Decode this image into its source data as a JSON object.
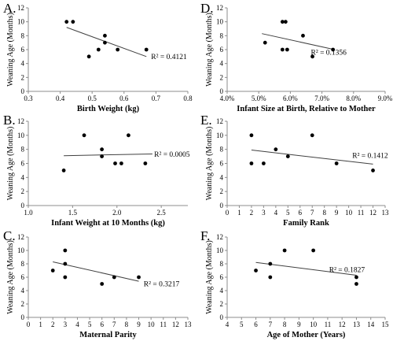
{
  "chart_data": [
    {
      "panel": "A.",
      "type": "scatter",
      "xlabel": "Birth Weight (kg)",
      "ylabel": "Weaning Age (Months)",
      "xlim": [
        0.3,
        0.8
      ],
      "ylim": [
        0,
        12
      ],
      "x_ticks": [
        0.3,
        0.4,
        0.5,
        0.6,
        0.7,
        0.8
      ],
      "x_tick_labels": [
        "0.3",
        "0.4",
        "0.5",
        "0.6",
        "0.7",
        "0.8"
      ],
      "y_ticks": [
        0,
        2,
        4,
        6,
        8,
        10,
        12
      ],
      "points": [
        [
          0.42,
          10
        ],
        [
          0.44,
          10
        ],
        [
          0.54,
          8
        ],
        [
          0.54,
          7
        ],
        [
          0.52,
          6
        ],
        [
          0.58,
          6
        ],
        [
          0.49,
          5
        ],
        [
          0.67,
          6
        ]
      ],
      "trendline": [
        [
          0.42,
          9.2
        ],
        [
          0.67,
          5.0
        ]
      ],
      "r2_label": "R² = 0.4121",
      "r2_pos": [
        0.685,
        5.0
      ]
    },
    {
      "panel": "D.",
      "type": "scatter",
      "xlabel": "Infant Size at Birth, Relative to Mother",
      "ylabel": "Weaning Age (Months)",
      "xlim": [
        4.0,
        9.0
      ],
      "ylim": [
        0,
        12
      ],
      "x_ticks": [
        4,
        5,
        6,
        7,
        8,
        9
      ],
      "x_tick_labels": [
        "4.0%",
        "5.0%",
        "6.0%",
        "7.0%",
        "8.0%",
        "9.0%"
      ],
      "y_ticks": [
        0,
        2,
        4,
        6,
        8,
        10,
        12
      ],
      "points": [
        [
          5.2,
          7
        ],
        [
          5.75,
          10
        ],
        [
          5.85,
          10
        ],
        [
          5.75,
          6
        ],
        [
          5.9,
          6
        ],
        [
          6.4,
          8
        ],
        [
          6.7,
          5
        ],
        [
          7.35,
          6
        ]
      ],
      "trendline": [
        [
          5.1,
          8.3
        ],
        [
          7.4,
          6.0
        ]
      ],
      "r2_label": "R² = 0.1356",
      "r2_pos": [
        6.65,
        5.6
      ]
    },
    {
      "panel": "B.",
      "type": "scatter",
      "xlabel": "Infant Weight at 10 Months (kg)",
      "ylabel": "Weaning Age (Months)",
      "xlim": [
        1.0,
        2.8
      ],
      "ylim": [
        0,
        12
      ],
      "x_ticks": [
        1.0,
        1.5,
        2.0,
        2.5
      ],
      "x_tick_labels": [
        "1.0",
        "1.5",
        "2.0",
        "2.5"
      ],
      "y_ticks": [
        0,
        2,
        4,
        6,
        8,
        10,
        12
      ],
      "points": [
        [
          1.4,
          5
        ],
        [
          1.63,
          10
        ],
        [
          1.83,
          8
        ],
        [
          1.83,
          7
        ],
        [
          1.98,
          6
        ],
        [
          2.05,
          6
        ],
        [
          2.13,
          10
        ],
        [
          2.32,
          6
        ]
      ],
      "trendline": [
        [
          1.4,
          7.1
        ],
        [
          2.4,
          7.35
        ]
      ],
      "r2_label": "R² = 0.0005",
      "r2_pos": [
        2.42,
        7.3
      ]
    },
    {
      "panel": "E.",
      "type": "scatter",
      "xlabel": "Family Rank",
      "ylabel": "Weaning Age (Months)",
      "xlim": [
        0,
        13
      ],
      "ylim": [
        0,
        12
      ],
      "x_ticks": [
        0,
        1,
        2,
        3,
        4,
        5,
        6,
        7,
        8,
        9,
        10,
        11,
        12,
        13
      ],
      "x_tick_labels": [
        "0",
        "1",
        "2",
        "3",
        "4",
        "5",
        "6",
        "7",
        "8",
        "9",
        "10",
        "11",
        "12",
        "13"
      ],
      "y_ticks": [
        0,
        2,
        4,
        6,
        8,
        10,
        12
      ],
      "points": [
        [
          2,
          10
        ],
        [
          2,
          6
        ],
        [
          3,
          6
        ],
        [
          4,
          8
        ],
        [
          5,
          7
        ],
        [
          7,
          10
        ],
        [
          9,
          6
        ],
        [
          12,
          5
        ]
      ],
      "trendline": [
        [
          2,
          7.9
        ],
        [
          12,
          5.9
        ]
      ],
      "r2_label": "R² = 0.1412",
      "r2_pos": [
        10.3,
        7.1
      ]
    },
    {
      "panel": "C.",
      "type": "scatter",
      "xlabel": "Maternal Parity",
      "ylabel": "Weaning Age (Months)",
      "xlim": [
        0,
        13
      ],
      "ylim": [
        0,
        12
      ],
      "x_ticks": [
        0,
        1,
        2,
        3,
        4,
        5,
        6,
        7,
        8,
        9,
        10,
        11,
        12,
        13
      ],
      "x_tick_labels": [
        "0",
        "1",
        "2",
        "3",
        "4",
        "5",
        "6",
        "7",
        "8",
        "9",
        "10",
        "11",
        "12",
        "13"
      ],
      "y_ticks": [
        0,
        2,
        4,
        6,
        8,
        10,
        12
      ],
      "points": [
        [
          2,
          7
        ],
        [
          3,
          10
        ],
        [
          3,
          8
        ],
        [
          3,
          6
        ],
        [
          6,
          5
        ],
        [
          7,
          6
        ],
        [
          9,
          6
        ]
      ],
      "trendline": [
        [
          2,
          8.3
        ],
        [
          9,
          5.4
        ]
      ],
      "r2_label": "R² = 0.3217",
      "r2_pos": [
        9.4,
        5.0
      ]
    },
    {
      "panel": "F.",
      "type": "scatter",
      "xlabel": "Age of Mother (Years)",
      "ylabel": "Weaning Age (Months)",
      "xlim": [
        4,
        15
      ],
      "ylim": [
        0,
        12
      ],
      "x_ticks": [
        4,
        5,
        6,
        7,
        8,
        9,
        10,
        11,
        12,
        13,
        14,
        15
      ],
      "x_tick_labels": [
        "4",
        "5",
        "6",
        "7",
        "8",
        "9",
        "10",
        "11",
        "12",
        "13",
        "14",
        "15"
      ],
      "y_ticks": [
        0,
        2,
        4,
        6,
        8,
        10,
        12
      ],
      "points": [
        [
          6,
          7
        ],
        [
          7,
          8
        ],
        [
          7,
          6
        ],
        [
          8,
          10
        ],
        [
          10,
          10
        ],
        [
          13,
          6
        ],
        [
          13,
          5
        ]
      ],
      "trendline": [
        [
          6,
          8.2
        ],
        [
          13,
          6.3
        ]
      ],
      "r2_label": "R² = 0.1827",
      "r2_pos": [
        11.1,
        7.1
      ]
    }
  ]
}
